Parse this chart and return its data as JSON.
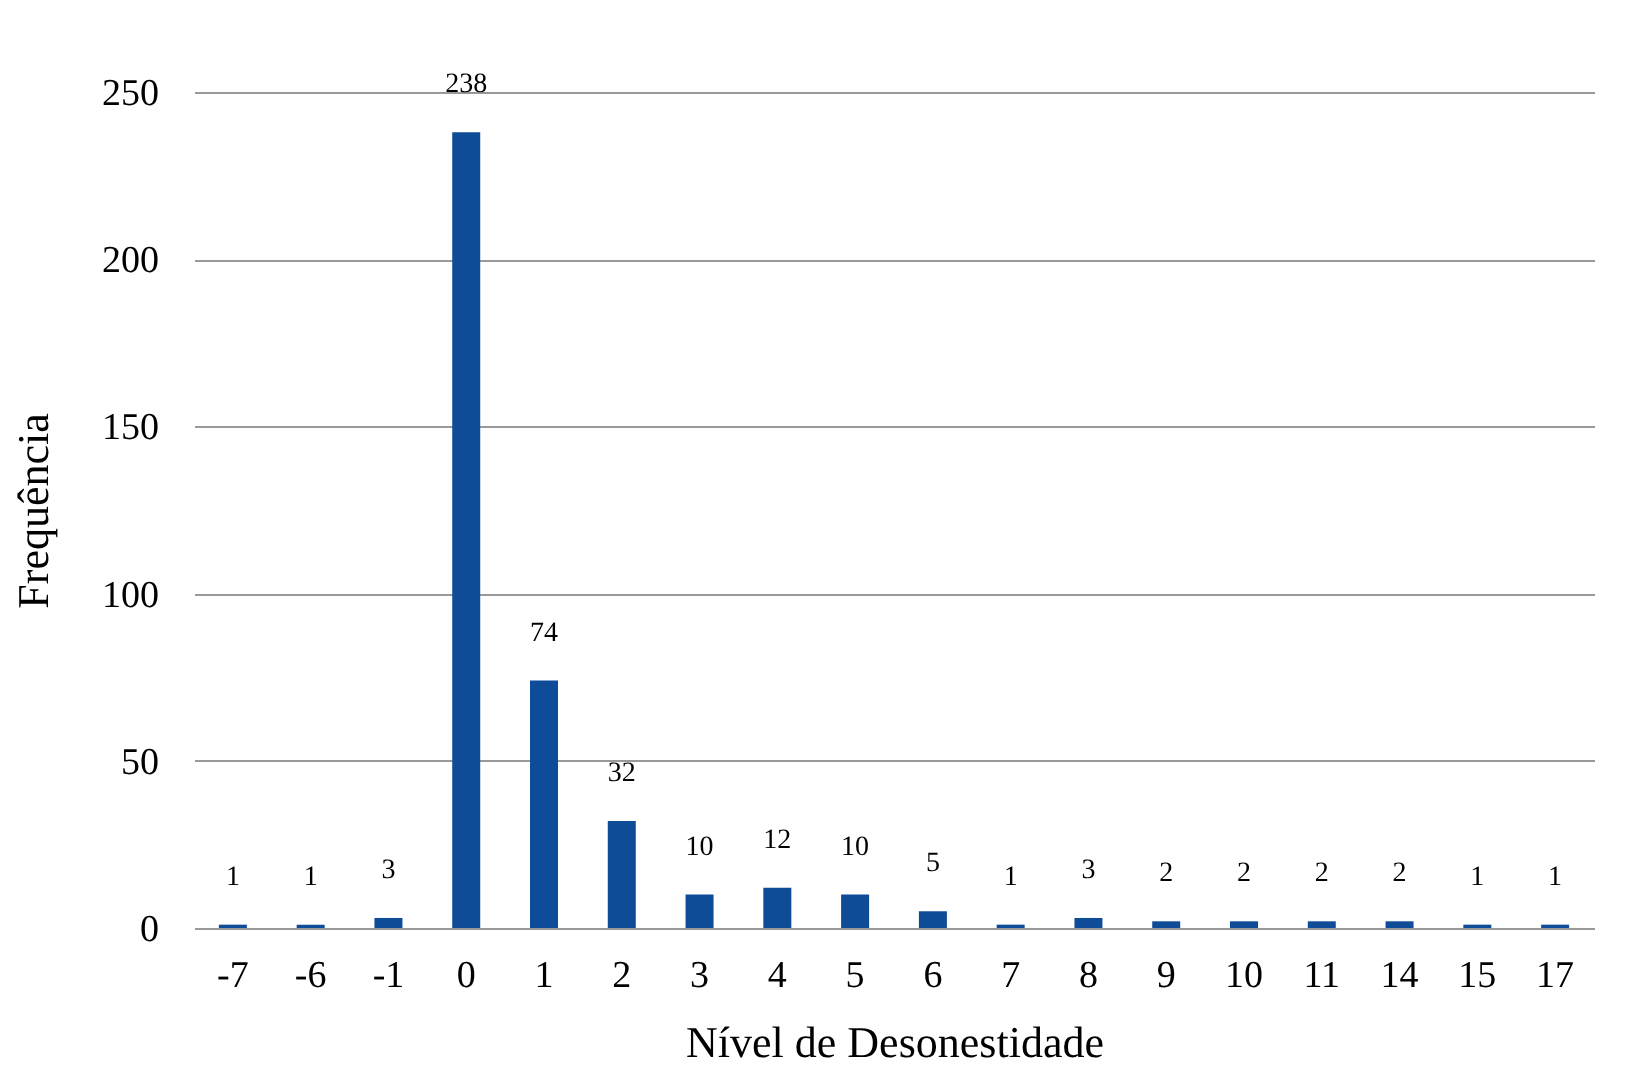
{
  "chart_data": {
    "type": "bar",
    "xlabel": "Nível de Desonestidade",
    "ylabel": "Frequência",
    "categories": [
      "-7",
      "-6",
      "-1",
      "0",
      "1",
      "2",
      "3",
      "4",
      "5",
      "6",
      "7",
      "8",
      "9",
      "10",
      "11",
      "14",
      "15",
      "17"
    ],
    "values": [
      1,
      1,
      3,
      238,
      74,
      32,
      10,
      12,
      10,
      5,
      1,
      3,
      2,
      2,
      2,
      2,
      1,
      1
    ],
    "color": "#0f4c97",
    "ylim": [
      0,
      250
    ],
    "yticks": [
      0,
      50,
      100,
      150,
      200,
      250
    ],
    "grid": "y",
    "data_labels": true
  }
}
